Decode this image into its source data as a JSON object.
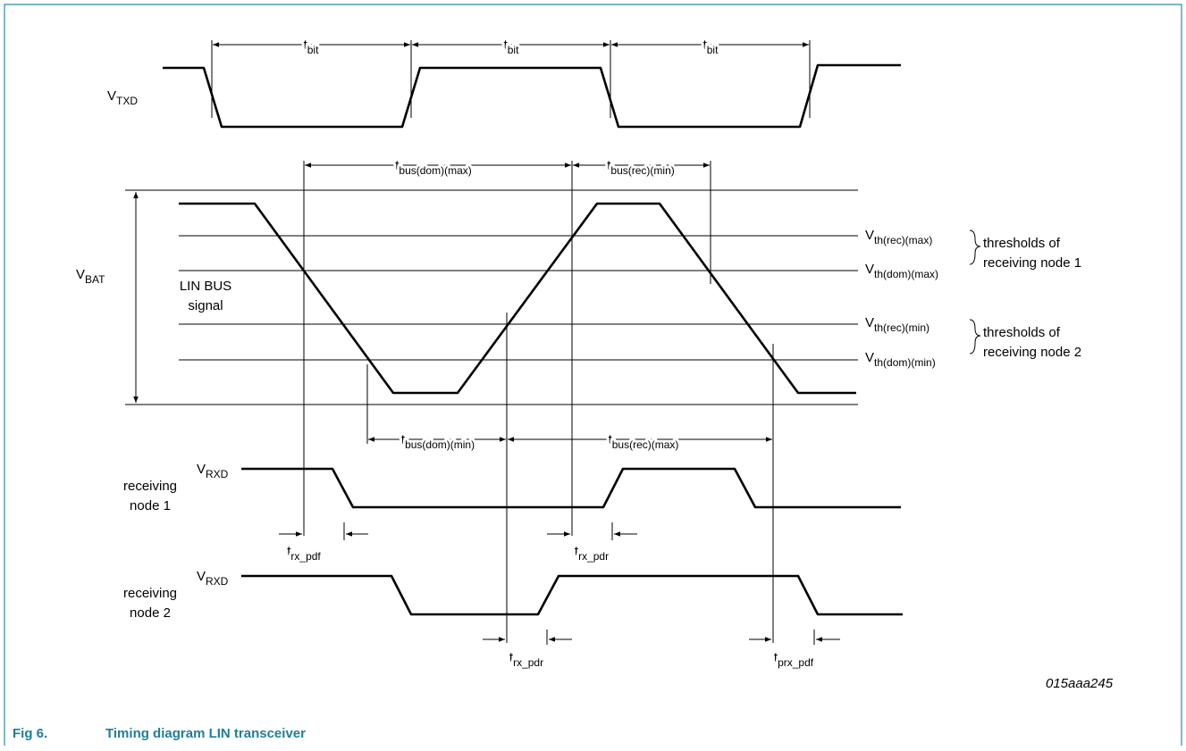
{
  "signals": {
    "txd": {
      "main": "V",
      "sub": "TXD"
    },
    "bat": {
      "main": "V",
      "sub": "BAT"
    },
    "bus": [
      "LIN BUS",
      "signal"
    ],
    "rxd1": {
      "main": "V",
      "sub": "RXD"
    },
    "node1": [
      "receiving",
      "node 1"
    ],
    "rxd2": {
      "main": "V",
      "sub": "RXD"
    },
    "node2": [
      "receiving",
      "node 2"
    ]
  },
  "timings": [
    {
      "main": "t",
      "sub": "bit"
    },
    {
      "main": "t",
      "sub": "bit"
    },
    {
      "main": "t",
      "sub": "bit"
    },
    {
      "main": "t",
      "sub": "bus(dom)(max)"
    },
    {
      "main": "t",
      "sub": "bus(rec)(min)"
    },
    {
      "main": "t",
      "sub": "bus(dom)(min)"
    },
    {
      "main": "t",
      "sub": "bus(rec)(max)"
    },
    {
      "main": "t",
      "sub": "rx_pdf"
    },
    {
      "main": "t",
      "sub": "rx_pdr"
    },
    {
      "main": "t",
      "sub": "rx_pdr"
    },
    {
      "main": "t",
      "sub": "prx_pdf"
    }
  ],
  "thresholds": [
    {
      "main": "V",
      "sub": "th(rec)(max)"
    },
    {
      "main": "V",
      "sub": "th(dom)(max)"
    },
    {
      "main": "V",
      "sub": "th(rec)(min)"
    },
    {
      "main": "V",
      "sub": "th(dom)(min)"
    }
  ],
  "groups": [
    [
      "thresholds of",
      "receiving node 1"
    ],
    [
      "thresholds of",
      "receiving node 2"
    ]
  ],
  "figure_id": "015aaa245",
  "caption": {
    "number": "Fig 6.",
    "title": "Timing diagram LIN transceiver"
  }
}
